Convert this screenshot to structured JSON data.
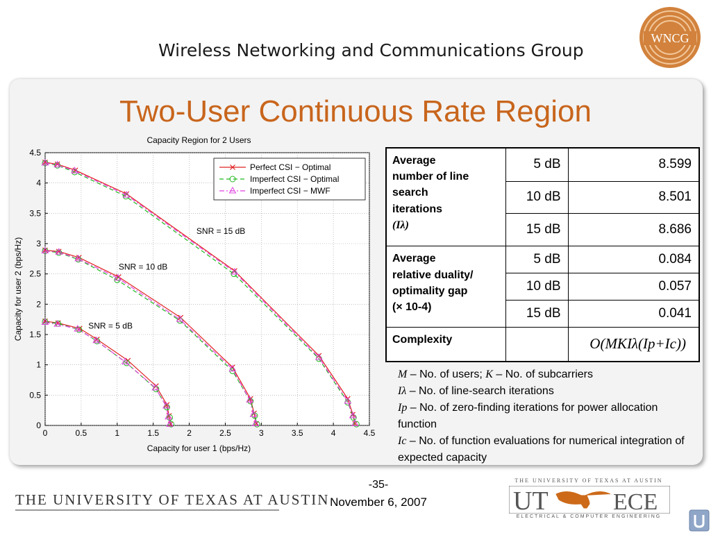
{
  "header": {
    "group_name": "Wireless Networking and Communications Group",
    "logo_text": "WNCG"
  },
  "slide": {
    "title": "Two-User Continuous Rate Region"
  },
  "chart_data": {
    "type": "line",
    "title": "Capacity Region for 2 Users",
    "xlabel": "Capacity for user 1 (bps/Hz)",
    "ylabel": "Capacity for user 2 (bps/Hz)",
    "xlim": [
      0,
      4.5
    ],
    "ylim": [
      0,
      4.5
    ],
    "xticks": [
      "0",
      "0.5",
      "1",
      "1.5",
      "2",
      "2.5",
      "3",
      "3.5",
      "4",
      "4.5"
    ],
    "yticks": [
      "0",
      "0.5",
      "1",
      "1.5",
      "2",
      "2.5",
      "3",
      "3.5",
      "4",
      "4.5"
    ],
    "grid": true,
    "legend_position": "top-right",
    "series": [
      {
        "name": "Perfect CSI − Optimal",
        "color": "#e02020",
        "dash": "solid",
        "marker": "x",
        "curves": [
          {
            "x": [
              0,
              0.18,
              0.48,
              0.72,
              1.15,
              1.54,
              1.69,
              1.72,
              1.74
            ],
            "y": [
              1.72,
              1.69,
              1.6,
              1.42,
              1.07,
              0.65,
              0.34,
              0.16,
              0.02
            ]
          },
          {
            "x": [
              0,
              0.19,
              0.47,
              1.02,
              1.88,
              2.6,
              2.85,
              2.9,
              2.93
            ],
            "y": [
              2.89,
              2.87,
              2.77,
              2.45,
              1.78,
              0.96,
              0.44,
              0.2,
              0.03
            ]
          },
          {
            "x": [
              0,
              0.17,
              0.42,
              1.13,
              2.63,
              3.8,
              4.2,
              4.27,
              4.3
            ],
            "y": [
              4.34,
              4.31,
              4.21,
              3.82,
              2.55,
              1.15,
              0.44,
              0.18,
              0.03
            ]
          }
        ]
      },
      {
        "name": "Imperfect CSI − Optimal",
        "color": "#20b820",
        "dash": "dashed",
        "marker": "circle",
        "curves": [
          {
            "x": [
              0,
              0.18,
              0.47,
              0.72,
              1.13,
              1.54,
              1.69,
              1.73,
              1.75
            ],
            "y": [
              1.71,
              1.68,
              1.58,
              1.39,
              1.03,
              0.6,
              0.3,
              0.13,
              0.02
            ]
          },
          {
            "x": [
              0,
              0.19,
              0.46,
              1.0,
              1.87,
              2.6,
              2.85,
              2.91,
              2.94
            ],
            "y": [
              2.88,
              2.85,
              2.74,
              2.4,
              1.73,
              0.9,
              0.4,
              0.16,
              0.02
            ]
          },
          {
            "x": [
              0,
              0.17,
              0.41,
              1.12,
              2.62,
              3.8,
              4.2,
              4.28,
              4.32
            ],
            "y": [
              4.33,
              4.29,
              4.18,
              3.78,
              2.5,
              1.1,
              0.38,
              0.13,
              0.02
            ]
          }
        ]
      },
      {
        "name": "Imperfect CSI − MWF",
        "color": "#e040e0",
        "dash": "dashdot",
        "marker": "triangle",
        "curves": [
          {
            "x": [
              0,
              0.17,
              0.45,
              0.71,
              1.11,
              1.53,
              1.68,
              1.71,
              1.73
            ],
            "y": [
              1.7,
              1.67,
              1.59,
              1.4,
              1.05,
              0.62,
              0.32,
              0.14,
              0.02
            ]
          },
          {
            "x": [
              0,
              0.19,
              0.46,
              1.01,
              1.87,
              2.6,
              2.84,
              2.89,
              2.92
            ],
            "y": [
              2.88,
              2.86,
              2.75,
              2.43,
              1.75,
              0.93,
              0.42,
              0.18,
              0.03
            ]
          },
          {
            "x": [
              0,
              0.17,
              0.41,
              1.13,
              2.63,
              3.8,
              4.2,
              4.27,
              4.3
            ],
            "y": [
              4.33,
              4.3,
              4.2,
              3.8,
              2.53,
              1.12,
              0.4,
              0.16,
              0.03
            ]
          }
        ]
      }
    ],
    "annotations": [
      {
        "text": "SNR = 15 dB",
        "x": 2.1,
        "y": 3.16
      },
      {
        "text": "SNR = 10 dB",
        "x": 1.02,
        "y": 2.57
      },
      {
        "text": "SNR = 5 dB",
        "x": 0.6,
        "y": 1.6
      }
    ]
  },
  "table": {
    "rows": [
      {
        "metric_lines": [
          "Average",
          "number of line",
          "search",
          "iterations"
        ],
        "symbol": "(Iλ)",
        "entries": [
          {
            "snr": "5 dB",
            "value": "8.599"
          },
          {
            "snr": "10 dB",
            "value": "8.501"
          },
          {
            "snr": "15 dB",
            "value": "8.686"
          }
        ]
      },
      {
        "metric_lines": [
          "Average",
          "relative duality/",
          "optimality gap"
        ],
        "symbol": "(× 10-4)",
        "entries": [
          {
            "snr": "5 dB",
            "value": "0.084"
          },
          {
            "snr": "10 dB",
            "value": "0.057"
          },
          {
            "snr": "15 dB",
            "value": "0.041"
          }
        ]
      }
    ],
    "complexity_label": "Complexity",
    "complexity_value": "O(MKIλ(Ip+Ic))"
  },
  "notes": [
    {
      "sym": "M",
      "text": " – No. of users; ",
      "sym2": "K",
      "text2": " – No. of subcarriers"
    },
    {
      "sym": "Iλ",
      "text": " – No. of line-search iterations"
    },
    {
      "sym": "Ip",
      "text": " – No. of zero-finding iterations for power allocation function"
    },
    {
      "sym": "Ic",
      "text": " – No. of function evaluations for numerical integration of expected capacity"
    }
  ],
  "footer": {
    "university": "THE UNIVERSITY OF TEXAS AT AUSTIN",
    "page_number": "-35-",
    "date": "November 6, 2007",
    "ut_caption_top": "THE UNIVERSITY OF TEXAS AT AUSTIN",
    "ut_logo_left": "UT",
    "ut_logo_right": "ECE",
    "ut_caption_bottom": "ELECTRICAL & COMPUTER ENGINEERING"
  }
}
